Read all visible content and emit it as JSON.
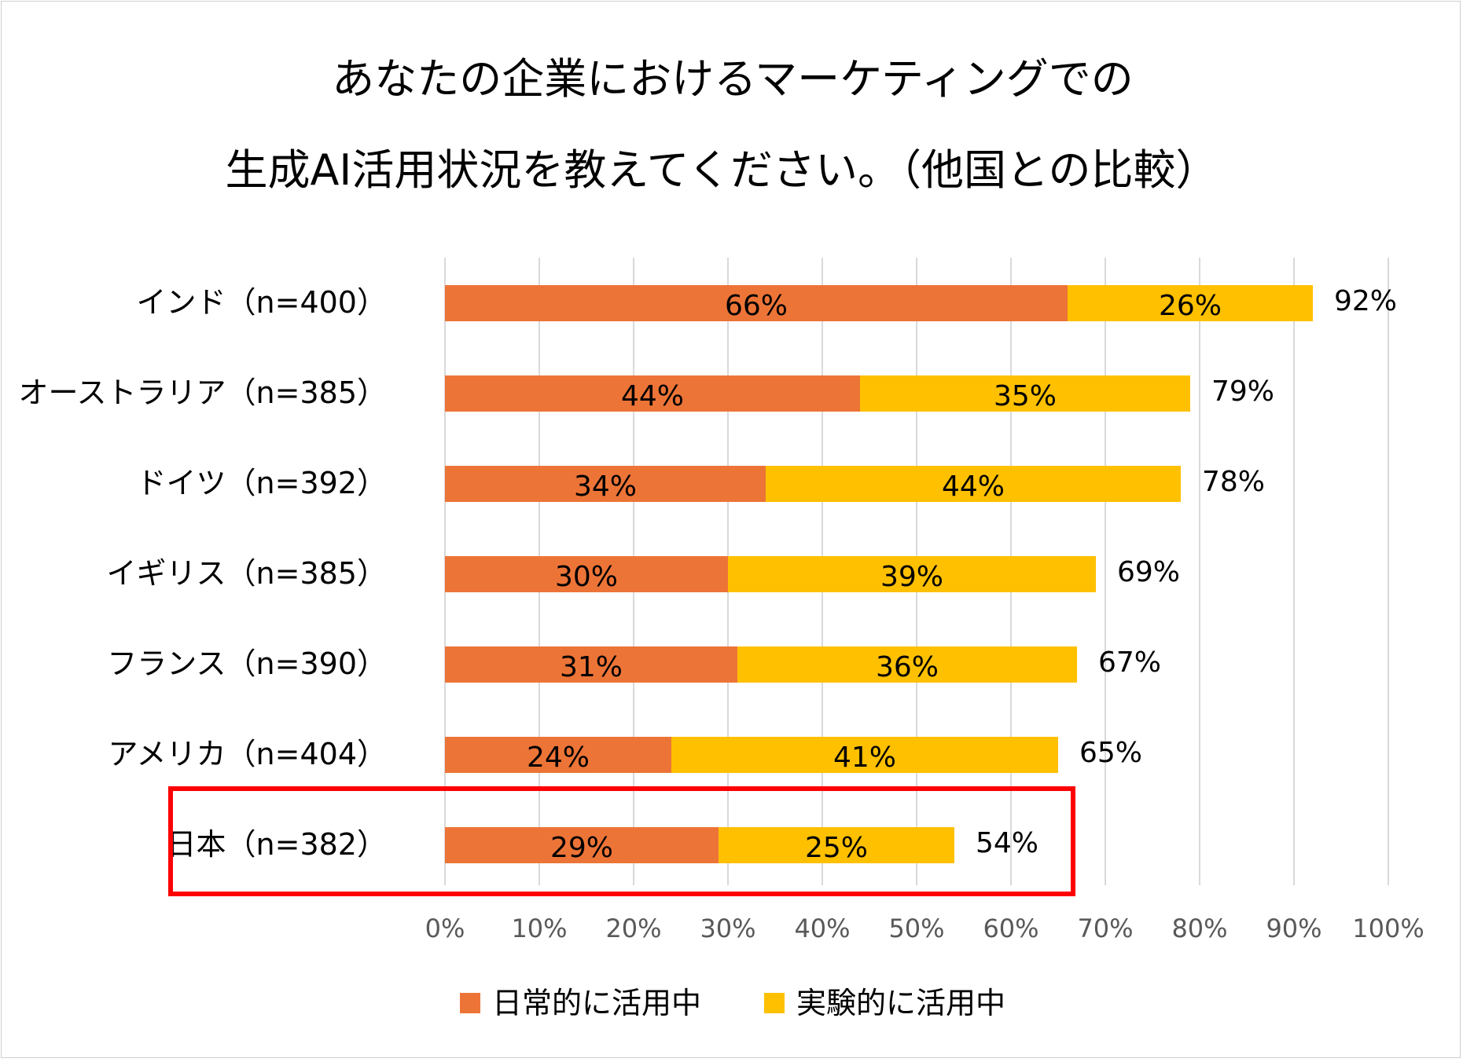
{
  "chart_data": {
    "type": "bar",
    "orientation": "horizontal",
    "stacked": true,
    "title": [
      "あなたの企業におけるマーケティングでの",
      "生成AI活用状況を教えてください。（他国との比較）"
    ],
    "categories": [
      "インド（n=400）",
      "オーストラリア（n=385）",
      "ドイツ（n=392）",
      "イギリス（n=385）",
      "フランス（n=390）",
      "アメリカ（n=404）",
      "日本（n=382）"
    ],
    "series": [
      {
        "name": "日常的に活用中",
        "color": "#ED7437",
        "values": [
          66,
          44,
          34,
          30,
          31,
          24,
          29
        ],
        "labels": [
          "66%",
          "44%",
          "34%",
          "30%",
          "31%",
          "24%",
          "29%"
        ]
      },
      {
        "name": "実験的に活用中",
        "color": "#FFC000",
        "values": [
          26,
          35,
          44,
          39,
          36,
          41,
          25
        ],
        "labels": [
          "26%",
          "35%",
          "44%",
          "39%",
          "36%",
          "41%",
          "25%"
        ]
      }
    ],
    "totals": [
      "92%",
      "79%",
      "78%",
      "69%",
      "67%",
      "65%",
      "54%"
    ],
    "xlim": [
      0,
      100
    ],
    "xticks": [
      "0%",
      "10%",
      "20%",
      "30%",
      "40%",
      "50%",
      "60%",
      "70%",
      "80%",
      "90%",
      "100%"
    ],
    "grid": true,
    "legend_position": "bottom",
    "highlight": {
      "category": "日本（n=382）",
      "color": "#FF0000"
    }
  }
}
